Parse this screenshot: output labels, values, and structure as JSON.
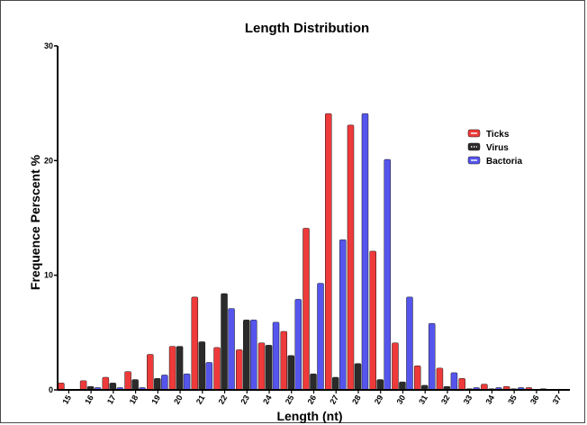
{
  "chart_data": {
    "type": "bar",
    "title": "Length Distribution",
    "xlabel": "Length (nt)",
    "ylabel": "Frequence Perscent %",
    "categories": [
      "15",
      "16",
      "17",
      "18",
      "19",
      "20",
      "21",
      "22",
      "23",
      "24",
      "25",
      "26",
      "27",
      "28",
      "29",
      "30",
      "31",
      "32",
      "33",
      "34",
      "35",
      "36",
      "37"
    ],
    "ylim": [
      0,
      30
    ],
    "yticks": [
      "0",
      "10",
      "20",
      "30"
    ],
    "grid": false,
    "legend_position": "top-right",
    "series": [
      {
        "name": "Ticks",
        "color": "#ee3a3a",
        "values": [
          0.6,
          0.8,
          1.1,
          1.6,
          3.1,
          3.8,
          8.1,
          3.7,
          3.5,
          4.1,
          5.1,
          14.1,
          24.1,
          23.1,
          12.1,
          4.1,
          2.1,
          1.9,
          1.0,
          0.5,
          0.3,
          0.2,
          0.0
        ]
      },
      {
        "name": "Virus",
        "color": "#2b2b2b",
        "values": [
          0.0,
          0.3,
          0.6,
          0.9,
          1.0,
          3.8,
          4.2,
          8.4,
          6.1,
          3.9,
          3.0,
          1.4,
          1.1,
          2.3,
          0.9,
          0.7,
          0.4,
          0.3,
          0.1,
          0.1,
          0.1,
          0.0,
          0.0
        ]
      },
      {
        "name": "Bactoria",
        "color": "#5555ee",
        "values": [
          0.0,
          0.2,
          0.2,
          0.2,
          1.3,
          1.4,
          2.4,
          7.1,
          6.1,
          5.9,
          7.9,
          9.3,
          13.1,
          24.1,
          20.1,
          8.1,
          5.8,
          1.5,
          0.2,
          0.2,
          0.2,
          0.1,
          0.0
        ]
      }
    ]
  }
}
